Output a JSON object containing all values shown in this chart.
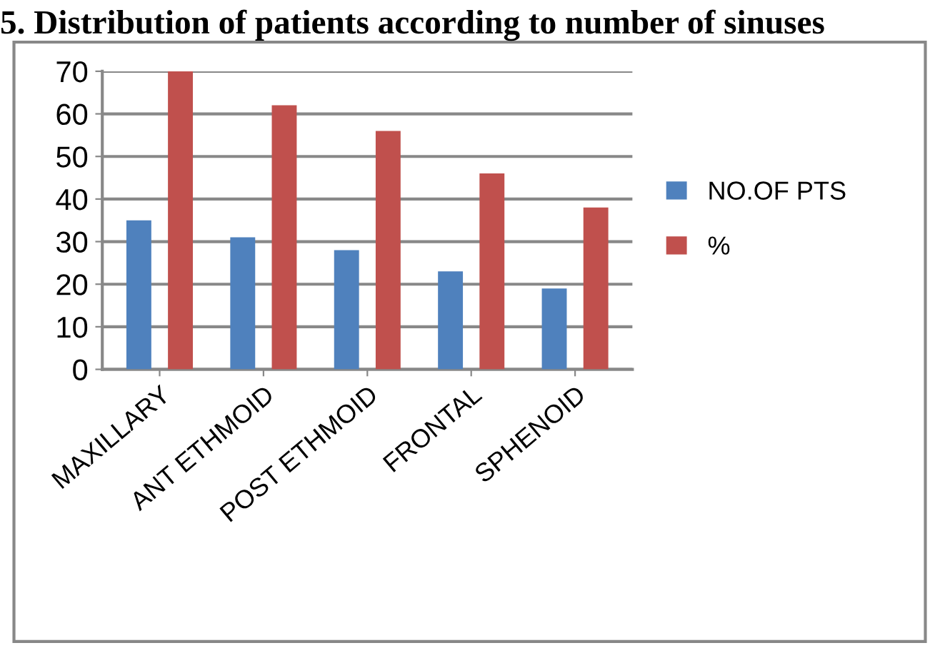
{
  "chart_data": {
    "type": "bar",
    "title": "5. Distribution of patients according to number of sinuses",
    "categories": [
      "MAXILLARY",
      "ANT ETHMOID",
      "POST ETHMOID",
      "FRONTAL",
      "SPHENOID"
    ],
    "series": [
      {
        "name": "NO.OF PTS",
        "color": "#4f81bd",
        "values": [
          35,
          31,
          28,
          23,
          19
        ]
      },
      {
        "name": "%",
        "color": "#c0504d",
        "values": [
          70,
          62,
          56,
          46,
          38
        ]
      }
    ],
    "ylim": [
      0,
      70
    ],
    "yticks": [
      0,
      10,
      20,
      30,
      40,
      50,
      60,
      70
    ],
    "grid": "y",
    "legend": "right"
  }
}
